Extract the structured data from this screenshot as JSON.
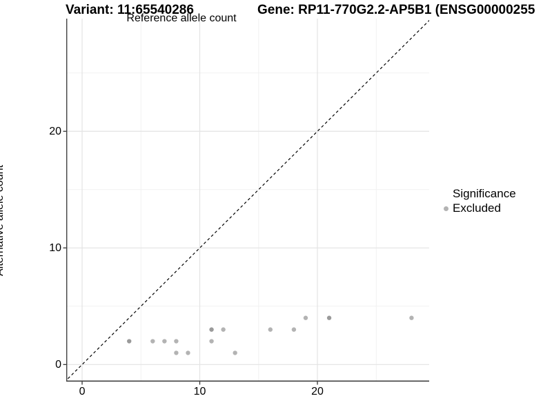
{
  "header": {
    "variant_title": "Variant: 11:65540286",
    "gene_title": "Gene: RP11-770G2.2-AP5B1 (ENSG00000255"
  },
  "legend": {
    "title": "Significance",
    "items": [
      {
        "label": "Excluded",
        "color": "#b3b3b3"
      }
    ]
  },
  "chart_data": {
    "type": "scatter",
    "title_left": "Variant: 11:65540286",
    "title_right": "Gene: RP11-770G2.2-AP5B1 (ENSG00000255",
    "xlabel": "Reference allele count",
    "ylabel": "Alternative allele count",
    "xlim": [
      -1.35,
      29.5
    ],
    "ylim": [
      -1.46,
      29.66
    ],
    "x_ticks": [
      0,
      10,
      20
    ],
    "y_ticks": [
      0,
      10,
      20
    ],
    "x_minor_grid": [
      5,
      15,
      25
    ],
    "y_minor_grid": [
      5,
      15,
      25
    ],
    "grid": "major and minor, light grey on white",
    "legend_position": "right",
    "identity_line": {
      "equation": "y = x",
      "style": "dashed",
      "color": "#000000"
    },
    "series": [
      {
        "name": "Excluded",
        "color": "#b3b3b3",
        "dark_color": "#9a9a9a",
        "points": [
          {
            "x": 4,
            "y": 2,
            "dark": true
          },
          {
            "x": 6,
            "y": 2
          },
          {
            "x": 7,
            "y": 2
          },
          {
            "x": 8,
            "y": 2
          },
          {
            "x": 8,
            "y": 1
          },
          {
            "x": 9,
            "y": 1
          },
          {
            "x": 11,
            "y": 2
          },
          {
            "x": 11,
            "y": 3,
            "dark": true
          },
          {
            "x": 12,
            "y": 3
          },
          {
            "x": 13,
            "y": 1
          },
          {
            "x": 16,
            "y": 3
          },
          {
            "x": 18,
            "y": 3
          },
          {
            "x": 19,
            "y": 4
          },
          {
            "x": 21,
            "y": 4,
            "dark": true
          },
          {
            "x": 28,
            "y": 4
          }
        ]
      }
    ]
  },
  "colors": {
    "background": "#ffffff",
    "grid_major": "#e3e3e3",
    "grid_minor": "#f1f1f1",
    "axis_line": "#404040",
    "tick_mark": "#333333",
    "text": "#000000"
  }
}
